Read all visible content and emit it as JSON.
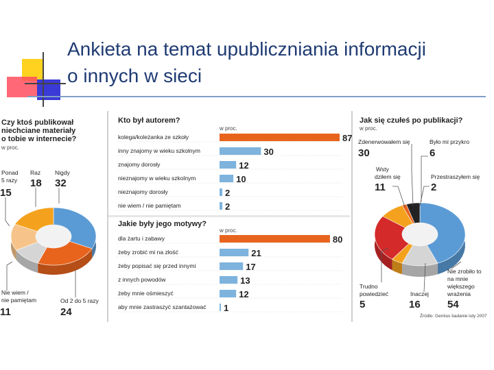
{
  "slide": {
    "title_line1": "Ankieta na temat upubliczniania informacji",
    "title_line2": "o innych w sieci"
  },
  "colors": {
    "title": "#1f3b73",
    "bar_highlight": "#e8641d",
    "bar_default": "#7db3dd",
    "blue": "#5b9bd5",
    "orange": "#e8641d",
    "red": "#d42a2a",
    "gold": "#f4a21e",
    "peach": "#f6c48a",
    "grey": "#d5d5d5",
    "black": "#222222"
  },
  "chart_data": [
    {
      "type": "pie",
      "title": "Czy ktoś publikował niechciane materiały o tobie w internecie?",
      "unit": "w proc.",
      "slices": [
        {
          "name": "Nigdy",
          "value": 32,
          "color": "#5b9bd5"
        },
        {
          "name": "Od 2 do 5 razy",
          "value": 24,
          "color": "#e8641d"
        },
        {
          "name": "Nie wiem / nie pamiętam",
          "value": 11,
          "color": "#d5d5d5"
        },
        {
          "name": "Ponad 5 razy",
          "value": 15,
          "color": "#f6c48a"
        },
        {
          "name": "Raz",
          "value": 18,
          "color": "#f4a21e"
        }
      ]
    },
    {
      "type": "bar",
      "orientation": "horizontal",
      "title": "Kto był autorem?",
      "unit": "w proc.",
      "categories": [
        "kolega/koleżanka ze szkoły",
        "inny znajomy w wieku szkolnym",
        "znajomy dorosły",
        "nieznajomy w wieku szkolnym",
        "nieznajomy dorosły",
        "nie wiem / nie pamiętam"
      ],
      "values": [
        87,
        30,
        12,
        10,
        2,
        2
      ],
      "xlim": [
        0,
        90
      ]
    },
    {
      "type": "bar",
      "orientation": "horizontal",
      "title": "Jakie były jego motywy?",
      "unit": "w proc.",
      "categories": [
        "dla żartu i zabawy",
        "żeby zrobić mi na złość",
        "żeby popisać się przed innymi",
        "z innych powodów",
        "żeby mnie ośmieszyć",
        "aby mnie zastraszyć szantażować"
      ],
      "values": [
        80,
        21,
        17,
        13,
        12,
        1
      ],
      "xlim": [
        0,
        90
      ]
    },
    {
      "type": "pie",
      "title": "Jak się czułeś po publikacji?",
      "unit": "w proc.",
      "slices": [
        {
          "name": "Nie zrobiło to na mnie większego wrażenia",
          "value": 54,
          "color": "#5b9bd5"
        },
        {
          "name": "Inaczej",
          "value": 16,
          "color": "#d5d5d5"
        },
        {
          "name": "Trudno powiedzieć",
          "value": 5,
          "color": "#f4a21e"
        },
        {
          "name": "Zdenerwowałem się",
          "value": 30,
          "color": "#d42a2a"
        },
        {
          "name": "Wstydziłem się",
          "value": 11,
          "color": "#f4a21e"
        },
        {
          "name": "Przestraszyłem się",
          "value": 2,
          "color": "#e8641d"
        },
        {
          "name": "Było mi przykro",
          "value": 6,
          "color": "#222222"
        }
      ]
    }
  ],
  "source": "Źródło: Gemius badanie luty 2007"
}
